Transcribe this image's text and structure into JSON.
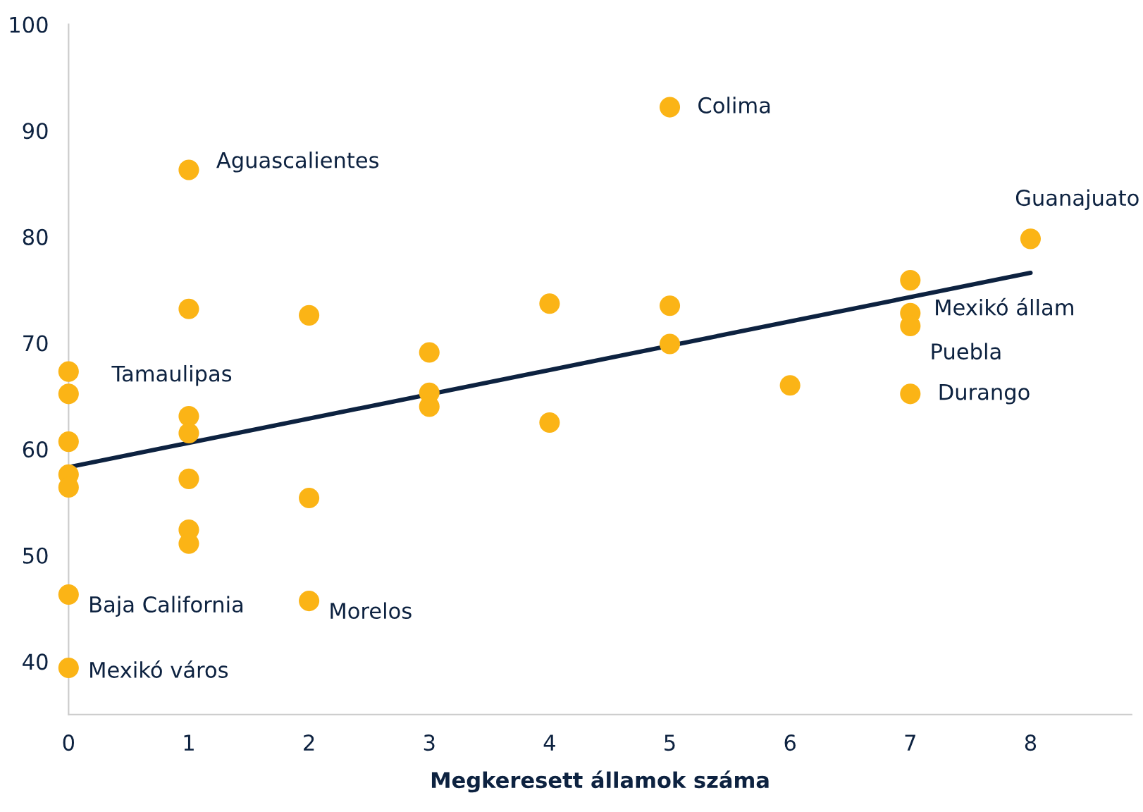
{
  "chart_data": {
    "type": "scatter",
    "xlabel": "Megkeresett államok száma",
    "xlim": [
      0,
      8.84
    ],
    "xticks": [
      0,
      1,
      2,
      3,
      4,
      5,
      6,
      7,
      8
    ],
    "ylim": [
      35,
      100
    ],
    "yticks": [
      40,
      50,
      60,
      70,
      80,
      90,
      100
    ],
    "grid": false,
    "legend": false,
    "series": [
      {
        "marker": "circle",
        "color": "#fbb416",
        "x": [
          0,
          0,
          0,
          0,
          0,
          0,
          0,
          1,
          1,
          1,
          1,
          1,
          1,
          1,
          2,
          2,
          2,
          3,
          3,
          3,
          4,
          4,
          5,
          5,
          5,
          6,
          7,
          7,
          7,
          7,
          8
        ],
        "values": [
          67.3,
          65.2,
          60.7,
          57.6,
          56.4,
          46.3,
          39.4,
          86.3,
          73.2,
          63.1,
          61.5,
          57.2,
          52.4,
          51.1,
          72.6,
          55.4,
          45.7,
          69.1,
          65.3,
          64.0,
          73.7,
          62.5,
          92.2,
          73.5,
          69.9,
          66.0,
          75.9,
          72.8,
          71.6,
          65.2,
          79.8
        ]
      },
      {
        "type": "line",
        "color": "#0d2240",
        "x": [
          0,
          8
        ],
        "values": [
          58.3,
          76.6
        ],
        "line_style": "solid"
      }
    ],
    "annotations": [
      {
        "text": "Colima",
        "x": 5,
        "y": 92.2
      },
      {
        "text": "Aguascalientes",
        "x": 1,
        "y": 86.3
      },
      {
        "text": "Guanajuato",
        "x": 8,
        "y": 79.8
      },
      {
        "text": "Mexikó állam",
        "x": 7,
        "y": 72.8
      },
      {
        "text": "Puebla",
        "x": 7,
        "y": 71.6
      },
      {
        "text": "Tamaulipas",
        "x": 0,
        "y": 67.3
      },
      {
        "text": "Durango",
        "x": 7,
        "y": 65.2
      },
      {
        "text": "Baja California",
        "x": 0,
        "y": 46.3
      },
      {
        "text": "Morelos",
        "x": 2,
        "y": 45.7
      },
      {
        "text": "Mexikó város",
        "x": 0,
        "y": 39.4
      }
    ]
  }
}
